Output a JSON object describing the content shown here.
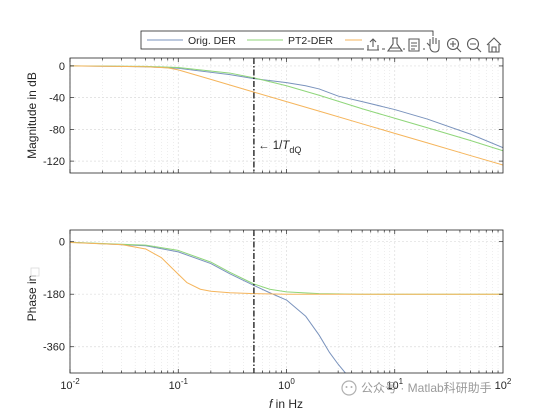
{
  "chart_data": [
    {
      "type": "line",
      "id": "magnitude",
      "xscale": "log",
      "xlim": [
        0.01,
        100
      ],
      "ylim": [
        -135,
        10
      ],
      "ylabel": "Magnitude in dB",
      "xlabel": "",
      "grid": true,
      "yticks": [
        0,
        -40,
        -80,
        -120
      ],
      "ytick_labels": [
        "0",
        "-40",
        "-80",
        "-120"
      ],
      "series": [
        {
          "name": "Orig. DER",
          "color": "#7a93bd",
          "x": [
            0.01,
            0.05,
            0.1,
            0.3,
            0.5,
            1,
            1.5,
            2,
            3,
            5,
            10,
            20,
            50,
            100
          ],
          "y": [
            0,
            -1,
            -3,
            -11,
            -16,
            -21,
            -25,
            -29,
            -38,
            -45,
            -55,
            -67,
            -86,
            -103
          ]
        },
        {
          "name": "PT2-DER",
          "color": "#8fd67a",
          "x": [
            0.01,
            0.05,
            0.1,
            0.3,
            0.5,
            1,
            2,
            5,
            10,
            20,
            50,
            100
          ],
          "y": [
            0,
            -0.5,
            -2,
            -9,
            -15,
            -25,
            -37,
            -54,
            -66,
            -78,
            -94,
            -107
          ]
        },
        {
          "name": "",
          "color": "#f5b55c",
          "x": [
            0.01,
            0.05,
            0.08,
            0.1,
            0.2,
            0.5,
            1,
            2,
            5,
            10,
            20,
            50,
            100
          ],
          "y": [
            0,
            -1,
            -2.5,
            -5,
            -17,
            -33,
            -45,
            -57,
            -73,
            -85,
            -97,
            -113,
            -125
          ]
        }
      ]
    },
    {
      "type": "line",
      "id": "phase",
      "xscale": "log",
      "xlim": [
        0.01,
        100
      ],
      "ylim": [
        -450,
        40
      ],
      "ylabel": "Phase in",
      "xlabel": "f in Hz",
      "grid": true,
      "yticks": [
        0,
        -180,
        -360
      ],
      "ytick_labels": [
        "0",
        "-180",
        "-360"
      ],
      "xticks": [
        0.01,
        0.1,
        1,
        10,
        100
      ],
      "series": [
        {
          "name": "Orig. DER",
          "color": "#7a93bd",
          "x": [
            0.01,
            0.05,
            0.1,
            0.2,
            0.3,
            0.5,
            0.7,
            1,
            1.5,
            2,
            2.5,
            3,
            3.5
          ],
          "y": [
            -2,
            -14,
            -35,
            -75,
            -110,
            -150,
            -175,
            -200,
            -255,
            -320,
            -380,
            -420,
            -450
          ]
        },
        {
          "name": "PT2-DER",
          "color": "#8fd67a",
          "x": [
            0.01,
            0.05,
            0.1,
            0.2,
            0.3,
            0.5,
            0.7,
            1,
            2,
            5,
            10,
            100
          ],
          "y": [
            -2,
            -12,
            -30,
            -70,
            -105,
            -145,
            -163,
            -172,
            -178,
            -180,
            -180,
            -180
          ]
        },
        {
          "name": "",
          "color": "#f5b55c",
          "x": [
            0.01,
            0.03,
            0.05,
            0.07,
            0.09,
            0.12,
            0.16,
            0.2,
            0.3,
            0.5,
            1,
            10,
            100
          ],
          "y": [
            -3,
            -10,
            -25,
            -55,
            -95,
            -140,
            -163,
            -170,
            -175,
            -178,
            -180,
            -180,
            -180
          ]
        }
      ]
    }
  ],
  "x_tick_labels": [
    "10",
    "10",
    "10",
    "10",
    "10"
  ],
  "x_tick_exponents": [
    "-2",
    "-1",
    "0",
    "1",
    "2"
  ],
  "marker_x": 0.5,
  "annotation": {
    "prefix": "← 1/",
    "var": "T",
    "sub": "dQ"
  },
  "xlabel_parts": {
    "var": "f",
    "rest": " in Hz"
  },
  "legend": {
    "items": [
      "Orig. DER",
      "PT2-DER",
      ""
    ]
  },
  "toolbar": {
    "icons": [
      "export-icon",
      "brush-icon",
      "data-tips-icon",
      "pan-icon",
      "zoom-in-icon",
      "zoom-out-icon",
      "home-icon"
    ]
  },
  "watermark": "公众号 · Matlab科研助手",
  "colors": {
    "axis": "#262626",
    "grid": "#dcdcdc",
    "marker": "#000000"
  }
}
